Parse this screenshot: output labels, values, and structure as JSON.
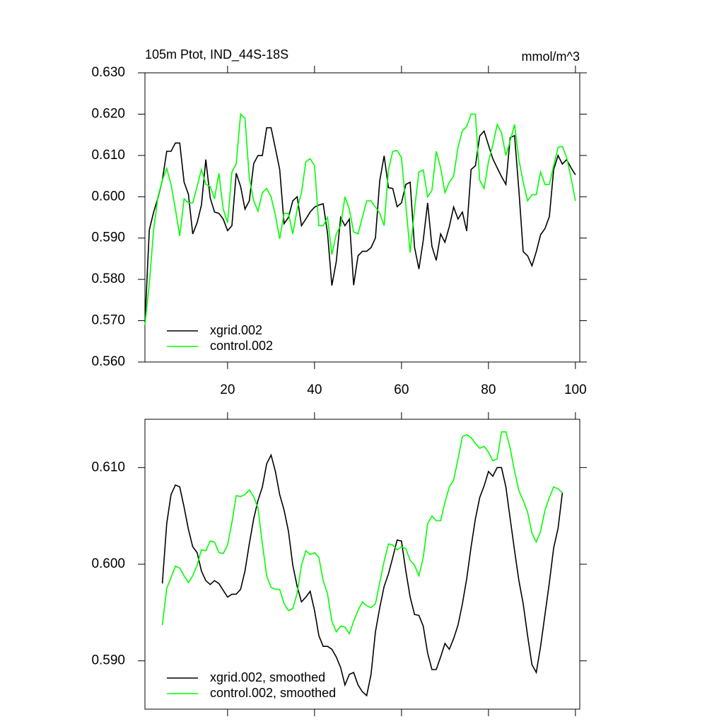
{
  "chart_data": [
    {
      "type": "line",
      "title": "105m Ptot, IND_44S-18S",
      "units": "mmol/m^3",
      "x": [
        1,
        2,
        3,
        4,
        5,
        6,
        7,
        8,
        9,
        10,
        11,
        12,
        13,
        14,
        15,
        16,
        17,
        18,
        19,
        20,
        21,
        22,
        23,
        24,
        25,
        26,
        27,
        28,
        29,
        30,
        31,
        32,
        33,
        34,
        35,
        36,
        37,
        38,
        39,
        40,
        41,
        42,
        43,
        44,
        45,
        46,
        47,
        48,
        49,
        50,
        51,
        52,
        53,
        54,
        55,
        56,
        57,
        58,
        59,
        60,
        61,
        62,
        63,
        64,
        65,
        66,
        67,
        68,
        69,
        70,
        71,
        72,
        73,
        74,
        75,
        76,
        77,
        78,
        79,
        80,
        81,
        82,
        83,
        84,
        85,
        86,
        87,
        88,
        89,
        90,
        91,
        92,
        93,
        94,
        95,
        96,
        97,
        98,
        99,
        100
      ],
      "series": [
        {
          "name": "xgrid.002",
          "color": "#000000",
          "values": [
            0.5696,
            0.592,
            0.5963,
            0.5997,
            0.604,
            0.611,
            0.611,
            0.613,
            0.613,
            0.6035,
            0.6006,
            0.591,
            0.5937,
            0.598,
            0.609,
            0.5997,
            0.5963,
            0.596,
            0.5946,
            0.5918,
            0.593,
            0.6057,
            0.6025,
            0.597,
            0.599,
            0.608,
            0.61,
            0.61,
            0.6167,
            0.6167,
            0.6117,
            0.6066,
            0.5935,
            0.595,
            0.599,
            0.6,
            0.593,
            0.5946,
            0.5963,
            0.5975,
            0.598,
            0.5983,
            0.5911,
            0.5785,
            0.5843,
            0.595,
            0.593,
            0.5946,
            0.5786,
            0.5857,
            0.5868,
            0.5868,
            0.5877,
            0.59,
            0.6039,
            0.6099,
            0.6022,
            0.602,
            0.5976,
            0.5985,
            0.603,
            0.6035,
            0.5878,
            0.5825,
            0.5894,
            0.5985,
            0.588,
            0.5846,
            0.591,
            0.589,
            0.5928,
            0.5975,
            0.5946,
            0.5963,
            0.5917,
            0.6066,
            0.6075,
            0.6147,
            0.6159,
            0.6125,
            0.6092,
            0.607,
            0.6049,
            0.603,
            0.6143,
            0.6148,
            0.6015,
            0.5867,
            0.5857,
            0.5833,
            0.5867,
            0.5908,
            0.5923,
            0.5952,
            0.6066,
            0.61,
            0.6079,
            0.609,
            0.607,
            0.6053
          ]
        },
        {
          "name": "control.002",
          "color": "#00ff00",
          "values": [
            0.569,
            0.579,
            0.592,
            0.6,
            0.604,
            0.6069,
            0.603,
            0.597,
            0.5905,
            0.5995,
            0.5985,
            0.5985,
            0.6025,
            0.6066,
            0.603,
            0.6025,
            0.5995,
            0.6057,
            0.597,
            0.5937,
            0.606,
            0.608,
            0.62,
            0.619,
            0.6045,
            0.599,
            0.5965,
            0.601,
            0.602,
            0.6,
            0.5955,
            0.5898,
            0.596,
            0.596,
            0.591,
            0.597,
            0.601,
            0.6085,
            0.6092,
            0.6075,
            0.593,
            0.593,
            0.595,
            0.586,
            0.591,
            0.593,
            0.6,
            0.597,
            0.5915,
            0.591,
            0.595,
            0.599,
            0.599,
            0.5975,
            0.596,
            0.593,
            0.6065,
            0.611,
            0.6112,
            0.6095,
            0.598,
            0.5865,
            0.597,
            0.606,
            0.6065,
            0.6,
            0.6015,
            0.611,
            0.607,
            0.601,
            0.6035,
            0.605,
            0.612,
            0.616,
            0.617,
            0.62,
            0.62,
            0.604,
            0.602,
            0.6085,
            0.6125,
            0.6175,
            0.6155,
            0.61,
            0.6135,
            0.6175,
            0.609,
            0.6035,
            0.599,
            0.6005,
            0.6005,
            0.606,
            0.603,
            0.603,
            0.6075,
            0.612,
            0.6122,
            0.6095,
            0.6045,
            0.599
          ]
        }
      ],
      "xlim": [
        1,
        101
      ],
      "xticks": [
        20,
        40,
        60,
        80,
        100
      ],
      "ylim": [
        0.56,
        0.63
      ],
      "yticks": [
        {
          "value": 0.56,
          "label": "0.560"
        },
        {
          "value": 0.57,
          "label": "0.570"
        },
        {
          "value": 0.58,
          "label": "0.580"
        },
        {
          "value": 0.59,
          "label": "0.590"
        },
        {
          "value": 0.6,
          "label": "0.600"
        },
        {
          "value": 0.61,
          "label": "0.610"
        },
        {
          "value": 0.62,
          "label": "0.620"
        },
        {
          "value": 0.63,
          "label": "0.630"
        }
      ],
      "xtick_labels": true,
      "legend": "lower-left"
    },
    {
      "type": "line",
      "x": [
        5,
        6,
        7,
        8,
        9,
        10,
        11,
        12,
        13,
        14,
        15,
        16,
        17,
        18,
        19,
        20,
        21,
        22,
        23,
        24,
        25,
        26,
        27,
        28,
        29,
        30,
        31,
        32,
        33,
        34,
        35,
        36,
        37,
        38,
        39,
        40,
        41,
        42,
        43,
        44,
        45,
        46,
        47,
        48,
        49,
        50,
        51,
        52,
        53,
        54,
        55,
        56,
        57,
        58,
        59,
        60,
        61,
        62,
        63,
        64,
        65,
        66,
        67,
        68,
        69,
        70,
        71,
        72,
        73,
        74,
        75,
        76,
        77,
        78,
        79,
        80,
        81,
        82,
        83,
        84,
        85,
        86,
        87,
        88,
        89,
        90,
        91,
        92,
        93,
        94,
        95,
        96,
        97
      ],
      "series": [
        {
          "name": "xgrid.002, smoothed",
          "color": "#000000",
          "values": [
            0.598,
            0.6042,
            0.6072,
            0.6082,
            0.608,
            0.6059,
            0.6036,
            0.6018,
            0.6012,
            0.5993,
            0.5983,
            0.5979,
            0.5983,
            0.598,
            0.5973,
            0.5966,
            0.5969,
            0.5969,
            0.5974,
            0.5993,
            0.6021,
            0.6047,
            0.6066,
            0.608,
            0.6104,
            0.6113,
            0.6096,
            0.6072,
            0.6056,
            0.6034,
            0.5999,
            0.5977,
            0.5961,
            0.5966,
            0.5972,
            0.5952,
            0.5926,
            0.5915,
            0.5915,
            0.5912,
            0.5904,
            0.5893,
            0.5875,
            0.5886,
            0.5888,
            0.5875,
            0.5868,
            0.5864,
            0.5886,
            0.593,
            0.5955,
            0.5977,
            0.599,
            0.6007,
            0.6025,
            0.6024,
            0.5993,
            0.5966,
            0.5948,
            0.5947,
            0.5936,
            0.5908,
            0.5891,
            0.5891,
            0.5904,
            0.5918,
            0.5912,
            0.5923,
            0.5937,
            0.5959,
            0.5985,
            0.6018,
            0.6047,
            0.6069,
            0.6081,
            0.6096,
            0.6091,
            0.61,
            0.61,
            0.608,
            0.6047,
            0.6014,
            0.5983,
            0.5959,
            0.5926,
            0.5896,
            0.5888,
            0.5915,
            0.5948,
            0.5981,
            0.6017,
            0.6037,
            0.6074
          ]
        },
        {
          "name": "control.002, smoothed",
          "color": "#00ff00",
          "values": [
            0.5937,
            0.5975,
            0.5986,
            0.5998,
            0.5996,
            0.5988,
            0.5981,
            0.5988,
            0.5999,
            0.6015,
            0.6014,
            0.6024,
            0.6023,
            0.6012,
            0.6011,
            0.602,
            0.6043,
            0.6071,
            0.607,
            0.6072,
            0.6077,
            0.607,
            0.6058,
            0.6021,
            0.5988,
            0.5976,
            0.5974,
            0.5974,
            0.5959,
            0.5952,
            0.5954,
            0.597,
            0.5999,
            0.6014,
            0.601,
            0.6012,
            0.6007,
            0.5983,
            0.5969,
            0.5941,
            0.593,
            0.5936,
            0.5935,
            0.5928,
            0.5941,
            0.5952,
            0.5961,
            0.5957,
            0.5955,
            0.5959,
            0.5981,
            0.6003,
            0.6021,
            0.602,
            0.6015,
            0.6018,
            0.6016,
            0.6004,
            0.5999,
            0.5988,
            0.6007,
            0.6042,
            0.605,
            0.6045,
            0.6045,
            0.6064,
            0.608,
            0.6087,
            0.6109,
            0.6132,
            0.6134,
            0.6131,
            0.6125,
            0.612,
            0.6122,
            0.6116,
            0.6107,
            0.6109,
            0.6137,
            0.6137,
            0.612,
            0.6096,
            0.6076,
            0.6066,
            0.6054,
            0.6032,
            0.6023,
            0.6034,
            0.6056,
            0.6069,
            0.608,
            0.6078,
            0.6074
          ]
        }
      ],
      "xlim": [
        1,
        101
      ],
      "xticks": [
        20,
        40,
        60,
        80,
        100
      ],
      "ylim": [
        0.585,
        0.615
      ],
      "yticks": [
        {
          "value": 0.59,
          "label": "0.590"
        },
        {
          "value": 0.6,
          "label": "0.600"
        },
        {
          "value": 0.61,
          "label": "0.610"
        }
      ],
      "xtick_labels": false,
      "legend": "lower-left"
    }
  ]
}
